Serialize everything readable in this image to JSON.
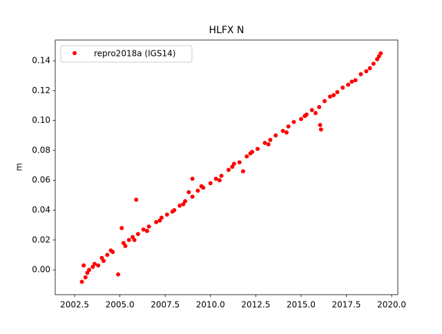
{
  "chart_data": {
    "type": "scatter",
    "title": "HLFX N",
    "y_label": "m",
    "x": [
      2002.9,
      2003.0,
      2003.1,
      2003.3,
      2003.5,
      2003.8,
      2004.0,
      2004.3,
      2004.6,
      2004.9,
      2005.1,
      2005.2,
      2005.5,
      2005.8,
      2005.9,
      2006.0,
      2006.3,
      2006.6,
      2007.0,
      2007.3,
      2007.6,
      2008.0,
      2008.3,
      2008.6,
      2008.8,
      2009.0,
      2009.0,
      2009.3,
      2009.6,
      2010.0,
      2010.3,
      2010.6,
      2011.0,
      2011.3,
      2011.6,
      2011.8,
      2012.0,
      2012.3,
      2012.6,
      2013.0,
      2013.3,
      2013.6,
      2014.0,
      2014.3,
      2014.6,
      2015.0,
      2015.3,
      2015.6,
      2016.0,
      2016.05,
      2016.1,
      2016.3,
      2016.6,
      2017.0,
      2017.3,
      2017.6,
      2018.0,
      2018.3,
      2018.6,
      2019.0,
      2019.2,
      2019.4,
      2003.2,
      2003.6,
      2004.1,
      2004.5,
      2005.3,
      2005.7,
      2006.5,
      2007.2,
      2007.9,
      2008.5,
      2009.5,
      2010.5,
      2011.2,
      2012.2,
      2013.2,
      2014.2,
      2015.2,
      2015.8,
      2016.8,
      2017.8,
      2018.8,
      2019.3
    ],
    "series": [
      {
        "name": "repro2018a (IGS14)",
        "color": "#ff0000",
        "values": [
          -0.008,
          0.003,
          -0.005,
          0.0,
          0.002,
          0.003,
          0.008,
          0.01,
          0.012,
          -0.003,
          0.028,
          0.018,
          0.02,
          0.02,
          0.047,
          0.024,
          0.027,
          0.029,
          0.032,
          0.035,
          0.037,
          0.04,
          0.043,
          0.046,
          0.052,
          0.061,
          0.049,
          0.053,
          0.055,
          0.058,
          0.061,
          0.063,
          0.067,
          0.071,
          0.072,
          0.066,
          0.076,
          0.079,
          0.081,
          0.085,
          0.087,
          0.09,
          0.093,
          0.096,
          0.099,
          0.101,
          0.104,
          0.107,
          0.109,
          0.097,
          0.094,
          0.113,
          0.116,
          0.119,
          0.122,
          0.124,
          0.127,
          0.131,
          0.133,
          0.138,
          0.141,
          0.145,
          -0.002,
          0.004,
          0.006,
          0.013,
          0.016,
          0.022,
          0.026,
          0.033,
          0.039,
          0.044,
          0.056,
          0.06,
          0.069,
          0.078,
          0.084,
          0.092,
          0.103,
          0.105,
          0.117,
          0.126,
          0.135,
          0.143
        ]
      }
    ],
    "xlim": [
      2001.43,
      2020.34
    ],
    "xticks": [
      {
        "value": 2002.5,
        "label": "2002.5"
      },
      {
        "value": 2005.0,
        "label": "2005.0"
      },
      {
        "value": 2007.5,
        "label": "2007.5"
      },
      {
        "value": 2010.0,
        "label": "2010.0"
      },
      {
        "value": 2012.5,
        "label": "2012.5"
      },
      {
        "value": 2015.0,
        "label": "2015.0"
      },
      {
        "value": 2017.5,
        "label": "2017.5"
      },
      {
        "value": 2020.0,
        "label": "2020.0"
      }
    ],
    "ylim": [
      -0.0166,
      0.1539
    ],
    "yticks": [
      {
        "value": 0.0,
        "label": "0.00"
      },
      0.02,
      0.04,
      0.06,
      0.08,
      {
        "value": 0.1,
        "label": "0.10"
      },
      0.12,
      0.14
    ],
    "legend": "upper left"
  }
}
